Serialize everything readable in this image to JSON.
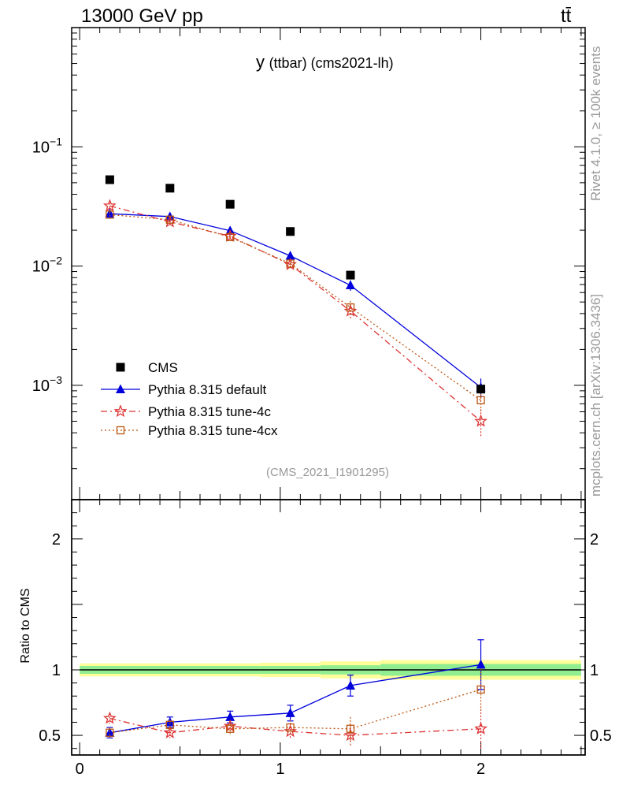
{
  "header": {
    "left": "13000 GeV pp",
    "right": "tt̄"
  },
  "side": {
    "rivet": "Rivet 4.1.0, ≥ 100k events",
    "mcplots": "mcplots.cern.ch [arXiv:1306.3436]"
  },
  "chart_data": {
    "type": "scatter",
    "title_main": "y",
    "title_rest": "(ttbar) (cms2021-lh)",
    "watermark": "(CMS_2021_I1901295)",
    "ratio_ylabel": "Ratio to CMS",
    "colors": {
      "cms": "#000000",
      "default": "#0000dd",
      "tune4c": "#dd3333",
      "tune4cx": "#bb5511",
      "band_inner": "#90ee90",
      "band_outer": "#ffff99"
    },
    "main": {
      "yscale": "log",
      "ylim": [
        0.00011,
        1.0
      ],
      "xlim": [
        -0.04,
        2.52
      ],
      "ytick_labels": [
        {
          "v": 0.1,
          "base": "10",
          "exp": "−1"
        },
        {
          "v": 0.01,
          "base": "10",
          "exp": "−2"
        },
        {
          "v": 0.001,
          "base": "10",
          "exp": "−3"
        }
      ]
    },
    "ratio": {
      "ylim": [
        0.35,
        2.3
      ],
      "yticks": [
        0.5,
        1,
        2
      ],
      "ytick_labels": [
        "0.5",
        "1",
        "2"
      ],
      "xticks": [
        0,
        1,
        2
      ],
      "xtick_labels": [
        "0",
        "1",
        "2"
      ]
    },
    "bins": [
      [
        0.0,
        0.3
      ],
      [
        0.3,
        0.6
      ],
      [
        0.6,
        0.9
      ],
      [
        0.9,
        1.2
      ],
      [
        1.2,
        1.5
      ],
      [
        1.5,
        2.5
      ]
    ],
    "x": [
      0.15,
      0.45,
      0.75,
      1.05,
      1.35,
      2.0
    ],
    "legend": [
      "CMS",
      "Pythia 8.315 default",
      "Pythia 8.315 tune-4c",
      "Pythia 8.315 tune-4cx"
    ],
    "series": [
      {
        "name": "CMS",
        "key": "cms",
        "values": [
          0.053,
          0.045,
          0.033,
          0.0195,
          0.0084,
          0.00093
        ],
        "band_inner": [
          0.03,
          0.03,
          0.03,
          0.03,
          0.035,
          0.045
        ],
        "band_outer": [
          0.05,
          0.05,
          0.05,
          0.055,
          0.065,
          0.075
        ]
      },
      {
        "name": "Pythia 8.315 default",
        "key": "default",
        "values": [
          0.0275,
          0.026,
          0.0198,
          0.0122,
          0.0069,
          0.00096
        ],
        "err": [
          0.0015,
          0.0013,
          0.0013,
          0.001,
          0.0007,
          0.00018
        ],
        "ratio": [
          0.52,
          0.6,
          0.64,
          0.67,
          0.88,
          1.04
        ],
        "ratio_err": [
          0.04,
          0.04,
          0.045,
          0.06,
          0.08,
          0.19
        ]
      },
      {
        "name": "Pythia 8.315 tune-4c",
        "key": "tune4c",
        "values": [
          0.032,
          0.0235,
          0.0178,
          0.0103,
          0.0042,
          0.0005
        ],
        "err": [
          0.0018,
          0.0012,
          0.001,
          0.0009,
          0.0006,
          0.00013
        ],
        "ratio": [
          0.63,
          0.52,
          0.57,
          0.53,
          0.5,
          0.55
        ],
        "ratio_err": [
          0.04,
          0.04,
          0.04,
          0.06,
          0.08,
          0.15
        ]
      },
      {
        "name": "Pythia 8.315 tune-4cx",
        "key": "tune4cx",
        "values": [
          0.027,
          0.0245,
          0.0175,
          0.0105,
          0.0045,
          0.00075
        ],
        "err": [
          0.0015,
          0.0012,
          0.001,
          0.0009,
          0.0006,
          0.00015
        ],
        "ratio": [
          0.52,
          0.58,
          0.55,
          0.56,
          0.55,
          0.85
        ],
        "ratio_err": [
          0.04,
          0.04,
          0.04,
          0.06,
          0.09,
          0.16
        ]
      }
    ]
  }
}
